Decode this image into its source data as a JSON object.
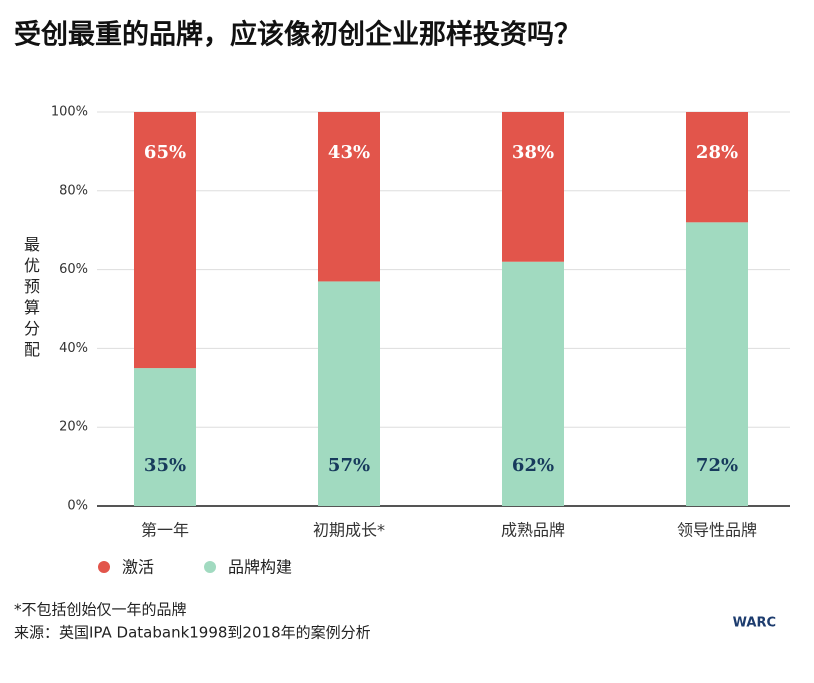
{
  "chart_data": {
    "type": "stacked_bar",
    "title": "受创最重的品牌，应该像初创企业那样投资吗？",
    "y_label": "最优预算分配",
    "categories": [
      "第一年",
      "初期成长*",
      "成熟品牌",
      "领导性品牌"
    ],
    "series": [
      {
        "name": "品牌构建",
        "color": "#a1dac0",
        "values": [
          35,
          57,
          62,
          72
        ],
        "value_labels": [
          "35%",
          "57%",
          "62%",
          "72%"
        ]
      },
      {
        "name": "激活",
        "color": "#e2554b",
        "values": [
          65,
          43,
          38,
          28
        ],
        "value_labels": [
          "65%",
          "43%",
          "38%",
          "28%"
        ]
      }
    ],
    "ylim": [
      0,
      100
    ],
    "yticks": [
      {
        "value": 0,
        "label": "0%"
      },
      {
        "value": 20,
        "label": "20%"
      },
      {
        "value": 40,
        "label": "40%"
      },
      {
        "value": 60,
        "label": "60%"
      },
      {
        "value": 80,
        "label": "80%"
      },
      {
        "value": 100,
        "label": "100%"
      }
    ],
    "grid": true,
    "footnotes": [
      "*不包括创始仅一年的品牌",
      "来源：英国IPA Databank1998到2018年的案例分析"
    ],
    "logo": "WARC"
  }
}
